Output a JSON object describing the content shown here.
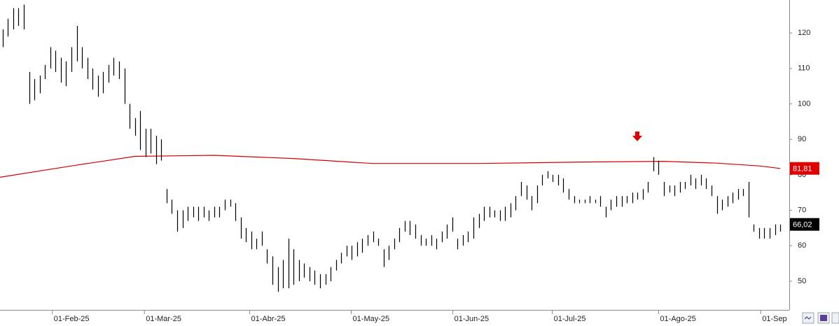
{
  "chart_data": {
    "type": "ohlc",
    "low": [
      116,
      119,
      121,
      122,
      121,
      100,
      101,
      103,
      107,
      110,
      109,
      106,
      105,
      109,
      112,
      110,
      107,
      104,
      102,
      103,
      106,
      108,
      107,
      100,
      93,
      91,
      87,
      85,
      86,
      83,
      84,
      72,
      69,
      64,
      65,
      67,
      68,
      67,
      68,
      67,
      68,
      68,
      70,
      71,
      67,
      62,
      61,
      59,
      59,
      60,
      55,
      49,
      47,
      48,
      48,
      49,
      50,
      51,
      50,
      49,
      48,
      49,
      50,
      53,
      55,
      57,
      56,
      57,
      58,
      60,
      61,
      60,
      54,
      56,
      59,
      61,
      64,
      63,
      62,
      60,
      60,
      60,
      59,
      61,
      62,
      64,
      59,
      60,
      61,
      62,
      65,
      67,
      68,
      68,
      67,
      67,
      68,
      70,
      74,
      73,
      70,
      72,
      77,
      79,
      78,
      77,
      75,
      73,
      72,
      72,
      72,
      72,
      72,
      71,
      68,
      70,
      71,
      71,
      72,
      72,
      73,
      73,
      75,
      81,
      80,
      74,
      75,
      74,
      75,
      76,
      77,
      76,
      77,
      76,
      74,
      69,
      70,
      71,
      72,
      73,
      74,
      68,
      64,
      62,
      62,
      62,
      63,
      64
    ],
    "high": [
      121,
      124,
      127,
      127,
      128,
      109,
      107,
      108,
      111,
      116,
      115,
      113,
      112,
      116,
      122,
      116,
      113,
      110,
      108,
      109,
      111,
      113,
      112,
      110,
      100,
      96,
      98,
      93,
      93,
      91,
      90,
      76,
      73,
      70,
      70,
      71,
      71,
      71,
      71,
      70,
      71,
      71,
      73,
      73,
      72,
      68,
      65,
      64,
      62,
      64,
      59,
      57,
      54,
      56,
      62,
      59,
      56,
      55,
      54,
      53,
      52,
      52,
      54,
      56,
      58,
      60,
      60,
      61,
      62,
      63,
      64,
      62,
      59,
      60,
      62,
      65,
      67,
      67,
      66,
      63,
      62,
      63,
      62,
      64,
      66,
      68,
      62,
      63,
      64,
      68,
      69,
      71,
      71,
      70,
      70,
      71,
      72,
      74,
      78,
      77,
      74,
      77,
      80,
      81,
      80,
      80,
      79,
      76,
      74,
      73,
      73,
      74,
      73,
      74,
      71,
      73,
      74,
      74,
      74,
      75,
      75,
      76,
      78,
      85,
      84,
      78,
      77,
      77,
      78,
      78,
      80,
      79,
      80,
      79,
      77,
      74,
      73,
      74,
      75,
      76,
      76,
      78,
      66,
      65,
      65,
      65,
      66,
      66
    ],
    "bar_color": "#000000",
    "ma": {
      "color": "#d40000",
      "x": [
        -0.5,
        13,
        25,
        40,
        55,
        70,
        90,
        110,
        125,
        135,
        143,
        147
      ],
      "values": [
        79.3,
        82.5,
        85.2,
        85.5,
        84.6,
        83.2,
        83.2,
        83.6,
        83.8,
        83.3,
        82.5,
        81.8
      ]
    },
    "last_labels": [
      {
        "value": 81.81,
        "label": "81,81",
        "color": "#e00000"
      },
      {
        "value": 66.02,
        "label": "66,02",
        "color": "#000000"
      }
    ],
    "xlim": [
      -0.5,
      148.7
    ],
    "xticks": [
      {
        "value": 9.4,
        "label": "01-Feb-25"
      },
      {
        "value": 26.8,
        "label": "01-Mar-25"
      },
      {
        "value": 46.7,
        "label": "01-Abr-25"
      },
      {
        "value": 65.9,
        "label": "01-May-25"
      },
      {
        "value": 85.1,
        "label": "01-Jun-25"
      },
      {
        "value": 103.9,
        "label": "01-Jul-25"
      },
      {
        "value": 124,
        "label": "01-Ago-25"
      },
      {
        "value": 143.3,
        "label": "01-Sep"
      }
    ],
    "ylim": [
      41.9,
      129.3
    ],
    "yticks": [
      50,
      60,
      70,
      80,
      90,
      100,
      110,
      120
    ],
    "grid": true
  }
}
